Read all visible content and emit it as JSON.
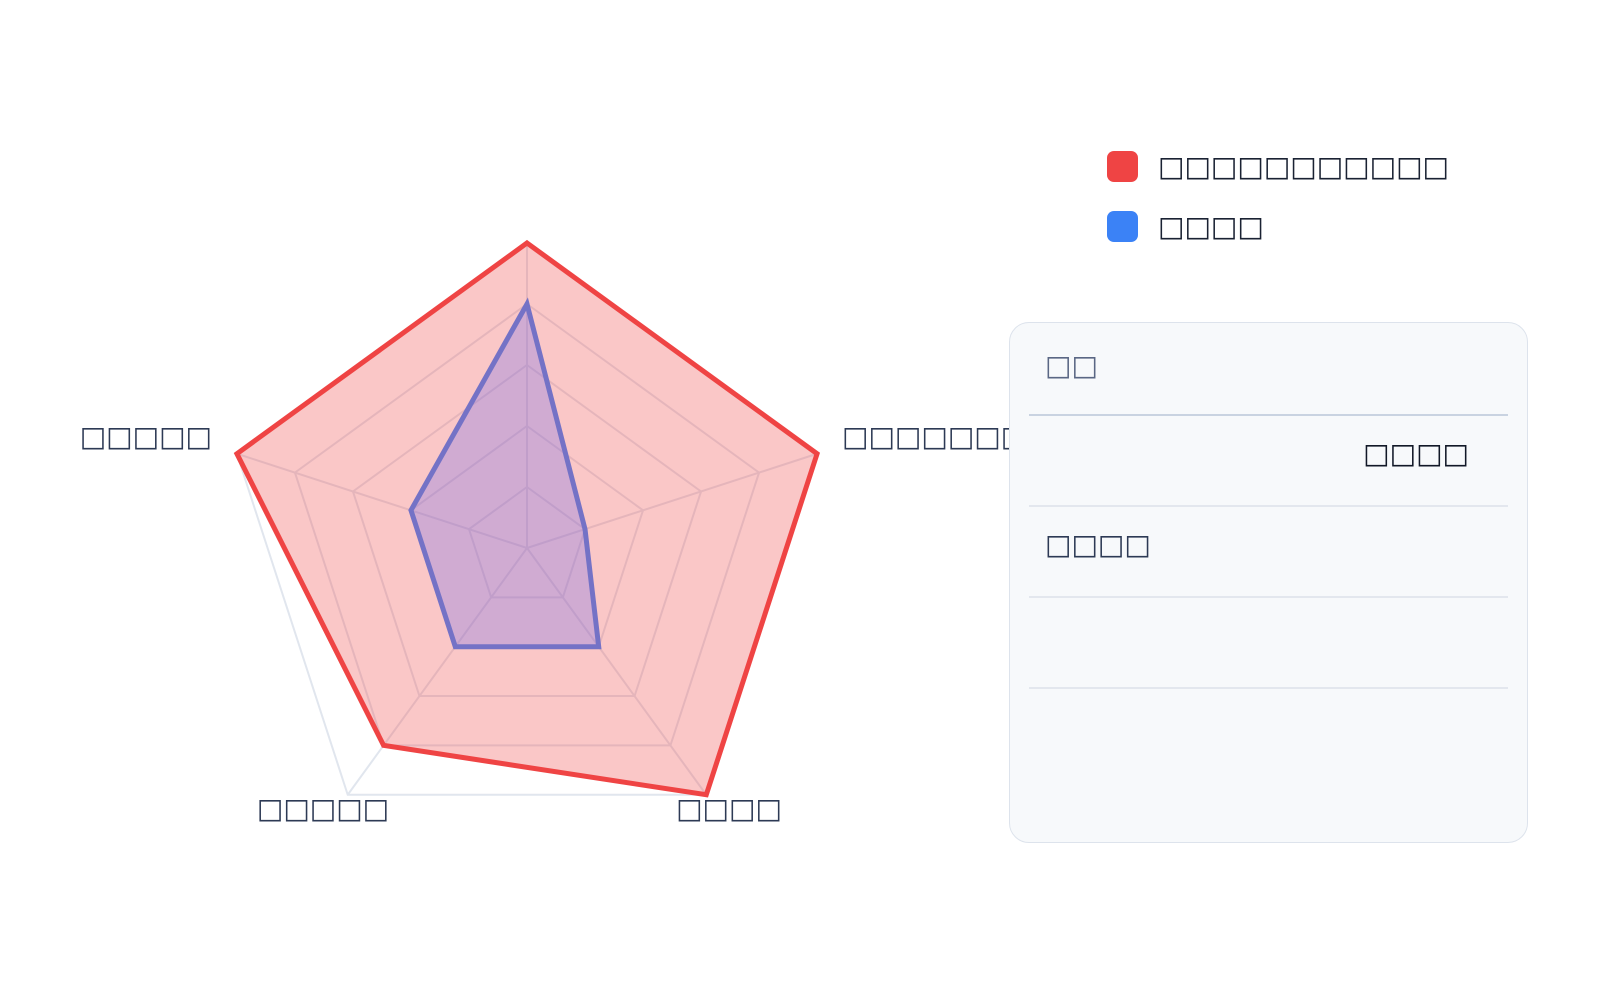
{
  "chart_data": {
    "type": "radar",
    "title": "",
    "axes": [
      "□□□□□□□",
      "□□□□",
      "□□□□□",
      "□□□□□"
    ],
    "unlabeled_axis_count": 1,
    "range": [
      0,
      5
    ],
    "grid_levels": 5,
    "series": [
      {
        "name": "□□□□□□□□□□□",
        "color": "#ef4444",
        "values": [
          5,
          5,
          5,
          4,
          5
        ]
      },
      {
        "name": "□□□□",
        "color": "#3b82f6",
        "values": [
          4,
          1,
          2,
          2,
          2
        ]
      }
    ],
    "legend_position": "top-right",
    "grid": true
  },
  "panel": {
    "header": "□□",
    "value": "□□□□",
    "row_label": "□□□□"
  }
}
